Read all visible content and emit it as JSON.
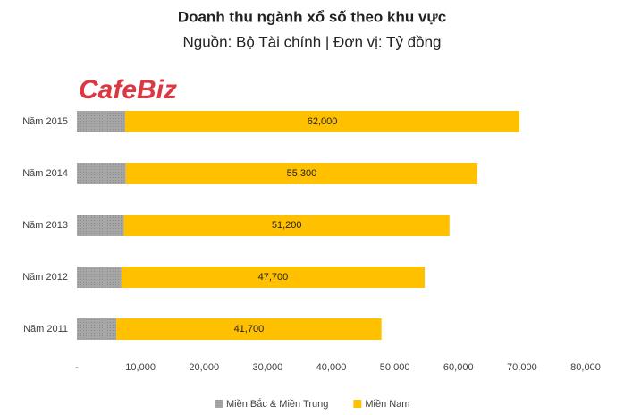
{
  "chart_data": {
    "type": "stacked-bar-horizontal",
    "title": "Doanh thu ngành xổ số theo khu vực",
    "subtitle": "Nguồn: Bộ Tài chính | Đơn vị: Tỷ đồng",
    "watermark": "CafeBiz",
    "categories": [
      "Năm 2015",
      "Năm 2014",
      "Năm 2013",
      "Năm 2012",
      "Năm 2011"
    ],
    "series": [
      {
        "name": "Miền Bắc & Miền Trung",
        "color": "#a6a6a6",
        "values": [
          7600,
          7700,
          7400,
          7000,
          6200
        ]
      },
      {
        "name": "Miền Nam",
        "color": "#ffc000",
        "values": [
          62000,
          55300,
          51200,
          47700,
          41700
        ],
        "value_labels": [
          "62,000",
          "55,300",
          "51,200",
          "47,700",
          "41,700"
        ]
      }
    ],
    "xlim": [
      0,
      80000
    ],
    "xticks": [
      {
        "value": 0,
        "label": "-"
      },
      {
        "value": 10000,
        "label": "10,000"
      },
      {
        "value": 20000,
        "label": "20,000"
      },
      {
        "value": 30000,
        "label": "30,000"
      },
      {
        "value": 40000,
        "label": "40,000"
      },
      {
        "value": 50000,
        "label": "50,000"
      },
      {
        "value": 60000,
        "label": "60,000"
      },
      {
        "value": 70000,
        "label": "70,000"
      },
      {
        "value": 80000,
        "label": "80,000"
      }
    ],
    "legend": "bottom"
  }
}
